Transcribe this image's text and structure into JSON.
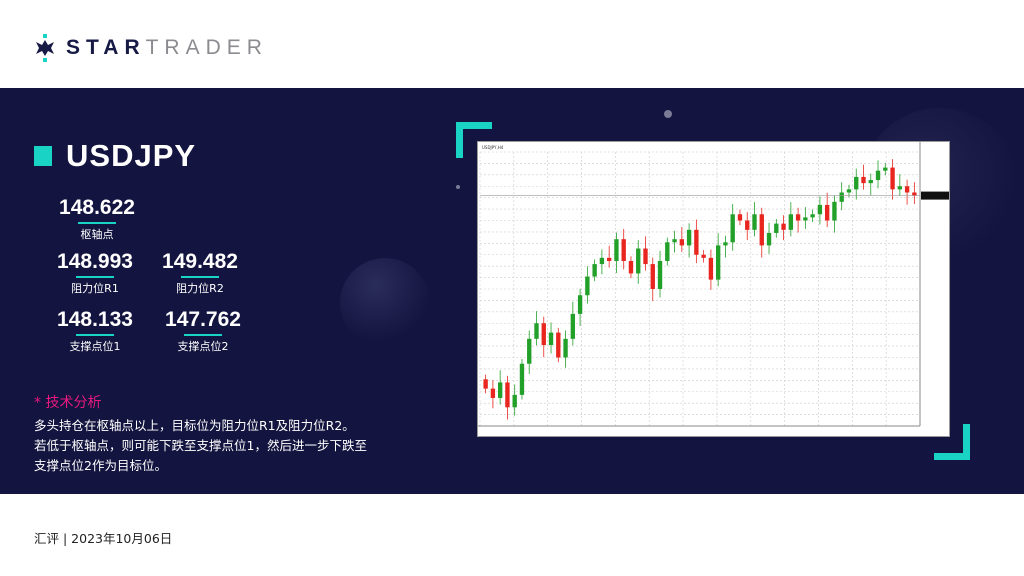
{
  "brand": {
    "name_bold": "STAR",
    "name_light": "TRADER"
  },
  "symbol": "USDJPY",
  "levels": {
    "pivot": {
      "value": "148.622",
      "label": "枢轴点"
    },
    "r1": {
      "value": "148.993",
      "label": "阻力位R1"
    },
    "r2": {
      "value": "149.482",
      "label": "阻力位R2"
    },
    "s1": {
      "value": "148.133",
      "label": "支撑点位1"
    },
    "s2": {
      "value": "147.762",
      "label": "支撑点位2"
    }
  },
  "analysis": {
    "heading": "* 技术分析",
    "lines": [
      "多头持仓在枢轴点以上，目标位为阻力位R1及阻力位R2。",
      "若低于枢轴点，则可能下跌至支撑点位1，然后进一步下跌至",
      "支撑点位2作为目标位。"
    ]
  },
  "footer": "汇评 | 2023年10月06日",
  "colors": {
    "panel": "#13143f",
    "accent": "#19d3c5",
    "heading": "#e8197f",
    "up": "#22a02a",
    "down": "#e8261f"
  },
  "chart_data": {
    "type": "candlestick",
    "title": "USDJPY,H4",
    "closes": [
      142.2,
      141.9,
      142.4,
      141.6,
      142.0,
      143.0,
      143.8,
      144.3,
      143.6,
      144.0,
      143.2,
      143.8,
      144.6,
      145.2,
      145.8,
      146.2,
      146.4,
      146.3,
      147.0,
      146.3,
      145.9,
      146.7,
      146.2,
      145.4,
      146.3,
      146.9,
      147.0,
      146.8,
      147.3,
      146.5,
      146.4,
      145.7,
      146.8,
      146.9,
      147.8,
      147.6,
      147.3,
      147.8,
      146.8,
      147.2,
      147.5,
      147.3,
      147.8,
      147.6,
      147.7,
      147.8,
      148.1,
      147.6,
      148.2,
      148.5,
      148.6,
      149.0,
      148.8,
      148.9,
      149.2,
      149.3,
      148.6,
      148.7,
      148.5,
      148.4
    ],
    "ylim": [
      141.0,
      149.8
    ],
    "grid": true
  }
}
